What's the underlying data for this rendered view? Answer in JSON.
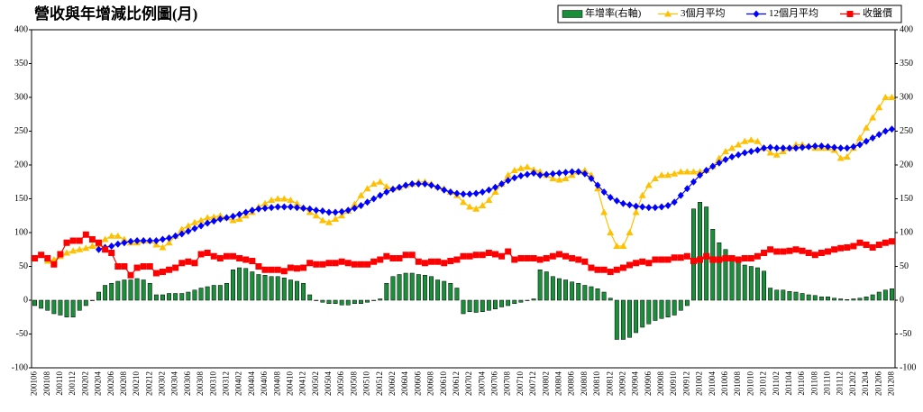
{
  "chart_data": {
    "type": "combo",
    "title": "營收與年增減比例圖(月)",
    "categories": [
      "200106",
      null,
      "200108",
      null,
      "200110",
      null,
      "200112",
      null,
      "200202",
      null,
      "200204",
      null,
      "200206",
      null,
      "200208",
      null,
      "200210",
      null,
      "200212",
      null,
      "200302",
      null,
      "200304",
      null,
      "200306",
      null,
      "200308",
      null,
      "200310",
      null,
      "200312",
      null,
      "200402",
      null,
      "200404",
      null,
      "200406",
      null,
      "200408",
      null,
      "200410",
      null,
      "200412",
      null,
      "200502",
      null,
      "200504",
      null,
      "200506",
      null,
      "200508",
      null,
      "200510",
      null,
      "200512",
      null,
      "200602",
      null,
      "200604",
      null,
      "200606",
      null,
      "200608",
      null,
      "200610",
      null,
      "200612",
      null,
      "200702",
      null,
      "200704",
      null,
      "200706",
      null,
      "200708",
      null,
      "200710",
      null,
      "200712",
      null,
      "200802",
      null,
      "200804",
      null,
      "200806",
      null,
      "200808",
      null,
      "200810",
      null,
      "200812",
      null,
      "200902",
      null,
      "200904",
      null,
      "200906",
      null,
      "200908",
      null,
      "200910",
      null,
      "200912",
      null,
      "201002",
      null,
      "201004",
      null,
      "201006",
      null,
      "201008",
      null,
      "201010",
      null,
      "201012",
      null,
      "201102",
      null,
      "201104",
      null,
      "201106",
      null,
      "201108",
      null,
      "201110",
      null,
      "201112",
      null,
      "201202",
      null,
      "201204",
      null,
      "201206",
      null,
      "201208"
    ],
    "series": [
      {
        "name": "年增率(右軸)",
        "type": "bar",
        "axis": "y2",
        "color": "#1a8f3a",
        "values": [
          -8,
          -12,
          -15,
          -20,
          -22,
          -25,
          -25,
          -15,
          -8,
          0,
          12,
          22,
          25,
          28,
          30,
          30,
          32,
          30,
          25,
          8,
          8,
          10,
          10,
          10,
          12,
          15,
          18,
          20,
          22,
          22,
          25,
          45,
          48,
          47,
          42,
          38,
          37,
          35,
          35,
          33,
          30,
          28,
          25,
          8,
          0,
          -3,
          -5,
          -5,
          -7,
          -7,
          -5,
          -5,
          -3,
          0,
          2,
          25,
          35,
          38,
          40,
          40,
          38,
          37,
          35,
          30,
          28,
          25,
          18,
          -20,
          -17,
          -18,
          -17,
          -15,
          -13,
          -10,
          -8,
          -5,
          -3,
          0,
          2,
          45,
          42,
          35,
          32,
          30,
          27,
          25,
          22,
          20,
          17,
          12,
          3,
          -58,
          -58,
          -55,
          -48,
          -40,
          -35,
          -30,
          -27,
          -25,
          -22,
          -15,
          -8,
          135,
          145,
          138,
          105,
          85,
          75,
          65,
          58,
          52,
          50,
          48,
          43,
          18,
          15,
          15,
          13,
          12,
          10,
          8,
          7,
          5,
          5,
          3,
          2,
          1,
          2,
          3,
          5,
          8,
          12,
          15,
          17
        ]
      },
      {
        "name": "3個月平均",
        "type": "line",
        "marker": "triangle",
        "color": "#ffc000",
        "values": [
          null,
          null,
          58,
          60,
          65,
          70,
          73,
          75,
          77,
          80,
          82,
          90,
          95,
          95,
          90,
          85,
          85,
          88,
          88,
          82,
          78,
          85,
          95,
          105,
          110,
          115,
          118,
          122,
          123,
          125,
          122,
          118,
          120,
          125,
          130,
          138,
          143,
          148,
          150,
          150,
          148,
          143,
          137,
          130,
          125,
          118,
          115,
          120,
          125,
          132,
          142,
          155,
          165,
          172,
          175,
          168,
          165,
          167,
          170,
          172,
          175,
          175,
          172,
          168,
          165,
          160,
          155,
          145,
          138,
          135,
          140,
          148,
          160,
          172,
          185,
          192,
          195,
          197,
          193,
          190,
          185,
          180,
          178,
          180,
          185,
          190,
          192,
          185,
          165,
          130,
          100,
          80,
          80,
          100,
          130,
          155,
          170,
          180,
          185,
          185,
          187,
          190,
          190,
          190,
          190,
          192,
          198,
          210,
          220,
          225,
          230,
          235,
          237,
          235,
          225,
          218,
          215,
          220,
          225,
          230,
          230,
          228,
          225,
          225,
          225,
          222,
          210,
          212,
          225,
          240,
          255,
          270,
          285,
          300,
          300
        ]
      },
      {
        "name": "12個月平均",
        "type": "line",
        "marker": "diamond",
        "color": "#0000ff",
        "values": [
          null,
          null,
          null,
          null,
          null,
          null,
          null,
          null,
          null,
          null,
          75,
          78,
          80,
          83,
          85,
          87,
          88,
          88,
          88,
          88,
          90,
          92,
          95,
          98,
          102,
          106,
          110,
          114,
          117,
          120,
          122,
          124,
          127,
          130,
          133,
          135,
          136,
          137,
          138,
          138,
          138,
          137,
          136,
          135,
          133,
          132,
          130,
          130,
          131,
          133,
          136,
          140,
          145,
          150,
          155,
          160,
          164,
          167,
          170,
          172,
          172,
          172,
          170,
          167,
          163,
          160,
          158,
          157,
          157,
          158,
          160,
          163,
          167,
          172,
          177,
          181,
          184,
          186,
          188,
          185,
          186,
          187,
          188,
          189,
          190,
          190,
          187,
          180,
          170,
          160,
          152,
          147,
          143,
          141,
          139,
          138,
          137,
          137,
          138,
          140,
          145,
          155,
          165,
          175,
          185,
          192,
          198,
          203,
          208,
          212,
          215,
          218,
          220,
          222,
          225,
          226,
          225,
          225,
          225,
          225,
          226,
          227,
          228,
          228,
          227,
          226,
          225,
          225,
          227,
          230,
          235,
          240,
          245,
          250,
          253
        ]
      },
      {
        "name": "收盤價",
        "type": "line",
        "marker": "square",
        "color": "#ff0000",
        "values": [
          62,
          67,
          62,
          53,
          68,
          85,
          88,
          88,
          97,
          90,
          85,
          75,
          70,
          50,
          50,
          37,
          48,
          50,
          50,
          40,
          42,
          45,
          48,
          55,
          57,
          55,
          68,
          70,
          65,
          62,
          65,
          65,
          62,
          60,
          58,
          50,
          45,
          45,
          45,
          43,
          48,
          47,
          48,
          55,
          53,
          53,
          55,
          55,
          57,
          55,
          53,
          53,
          53,
          57,
          60,
          65,
          62,
          62,
          67,
          67,
          57,
          55,
          57,
          57,
          55,
          58,
          60,
          65,
          65,
          67,
          67,
          70,
          68,
          65,
          72,
          60,
          62,
          62,
          62,
          60,
          62,
          65,
          68,
          65,
          62,
          60,
          57,
          48,
          45,
          45,
          42,
          45,
          48,
          52,
          55,
          57,
          55,
          60,
          60,
          60,
          63,
          63,
          65,
          58,
          60,
          65,
          60,
          60,
          62,
          62,
          60,
          62,
          62,
          65,
          70,
          75,
          72,
          72,
          73,
          75,
          73,
          70,
          67,
          70,
          72,
          75,
          77,
          78,
          80,
          85,
          82,
          78,
          82,
          85,
          87
        ]
      }
    ],
    "ylim": [
      -100,
      400
    ],
    "yticks": [
      -100,
      -50,
      0,
      50,
      100,
      150,
      200,
      250,
      300,
      350,
      400
    ],
    "y2lim": [
      -100,
      400
    ],
    "y2ticks": [
      -100,
      -50,
      0,
      50,
      100,
      150,
      200,
      250,
      300,
      350,
      400
    ],
    "grid": false,
    "legend": "top-right"
  }
}
